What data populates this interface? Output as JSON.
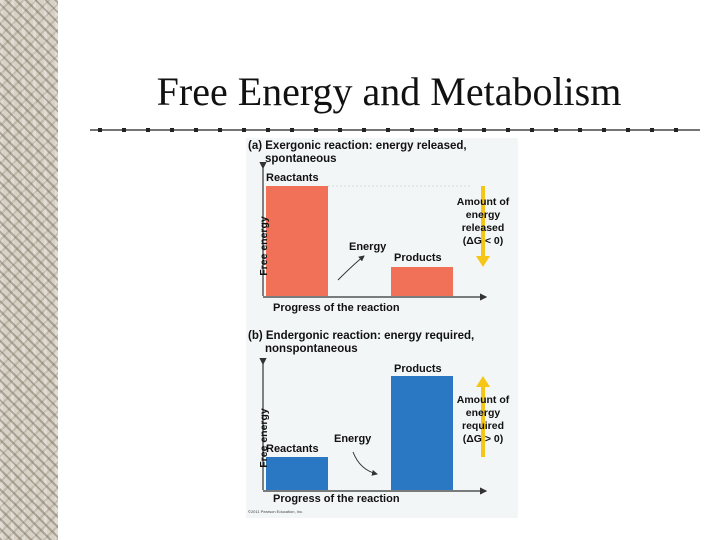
{
  "slide": {
    "title": "Free Energy and Metabolism"
  },
  "figure": {
    "panel_a": {
      "title_line1": "(a) Exergonic reaction: energy released,",
      "title_line2": "spontaneous",
      "reactants_label": "Reactants",
      "products_label": "Products",
      "energy_label": "Energy",
      "y_axis_label": "Free energy",
      "x_axis_label": "Progress of the reaction",
      "annotation_lines": [
        "Amount of",
        "energy",
        "released",
        "(ΔG < 0)"
      ],
      "bar_color": "#f07058"
    },
    "panel_b": {
      "title_line1": "(b) Endergonic reaction: energy required,",
      "title_line2": "nonspontaneous",
      "reactants_label": "Reactants",
      "products_label": "Products",
      "energy_label": "Energy",
      "y_axis_label": "Free energy",
      "x_axis_label": "Progress of the reaction",
      "annotation_lines": [
        "Amount of",
        "energy",
        "required",
        "(ΔG > 0)"
      ],
      "bar_color": "#2a78c4"
    },
    "arrow_color": "#f5c518",
    "credit": "©2011 Pearson Education, Inc."
  }
}
